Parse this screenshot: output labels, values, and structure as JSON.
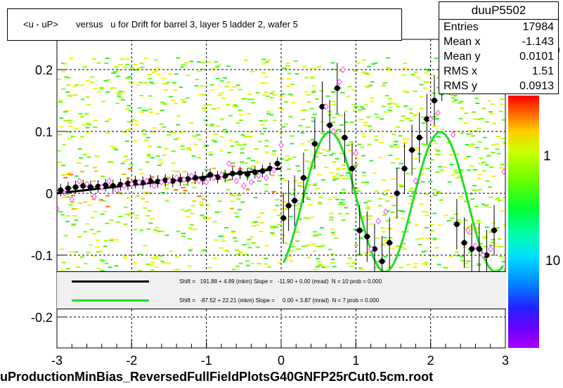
{
  "title": "<u - uP>       versus   u for Drift for barrel 3, layer 5 ladder 2, wafer 5",
  "stats": {
    "name": "duuP5502",
    "rows": [
      {
        "label": "Entries",
        "value": "17984"
      },
      {
        "label": "Mean x",
        "value": "-1.143"
      },
      {
        "label": "Mean y",
        "value": "0.0101"
      },
      {
        "label": "RMS x",
        "value": "1.51"
      },
      {
        "label": "RMS y",
        "value": "0.0913"
      }
    ]
  },
  "legend": [
    {
      "color": "#000000",
      "text": "Shift =   191.88 + 4.89 (mkm) Slope =   -11.90 + 0.00 (mrad)  N = 10 prob = 0.000"
    },
    {
      "color": "#22dd22",
      "text": "Shift =   -87.52 + 22.21 (mkm) Slope =     0.00 + 3.87 (mrad)  N = 7 prob = 0.000"
    }
  ],
  "footer": "uProductionMinBias_ReversedFullFieldPlotsG40GNFP25rCut0.5cm.root",
  "colorbar": {
    "tick_labels": [
      "1",
      "10"
    ],
    "top_label_fragment": "0"
  },
  "chart_data": {
    "type": "scatter",
    "xlim": [
      -3,
      3
    ],
    "ylim": [
      -0.25,
      0.25
    ],
    "x_ticks": [
      -3,
      -2,
      -1,
      0,
      1,
      2,
      3
    ],
    "y_ticks": [
      -0.2,
      -0.1,
      0,
      0.1,
      0.2
    ],
    "x_tick_labels": [
      "-3",
      "-2",
      "-1",
      "0",
      "1",
      "2",
      "3"
    ],
    "y_tick_labels": [
      "-0.2",
      "-0.1",
      "0",
      "0.1",
      "0.2"
    ],
    "grid": true,
    "series": [
      {
        "name": "profile",
        "color": "#000000",
        "marker": "filled-circle",
        "x": [
          -2.95,
          -2.85,
          -2.75,
          -2.65,
          -2.55,
          -2.45,
          -2.35,
          -2.25,
          -2.15,
          -2.05,
          -1.95,
          -1.85,
          -1.75,
          -1.65,
          -1.55,
          -1.45,
          -1.35,
          -1.25,
          -1.15,
          -1.05,
          -0.95,
          -0.85,
          -0.75,
          -0.65,
          -0.55,
          -0.45,
          -0.35,
          -0.25,
          -0.15,
          -0.05,
          0.03,
          0.1,
          0.18,
          0.3,
          0.45,
          0.55,
          0.65,
          0.75,
          0.85,
          0.95,
          1.05,
          1.15,
          1.25,
          1.35,
          1.45,
          1.55,
          1.65,
          1.75,
          1.85,
          1.95,
          2.05,
          2.15,
          2.25,
          2.35,
          2.45,
          2.55,
          2.65,
          2.75,
          2.85
        ],
        "y": [
          0.005,
          0.008,
          0.01,
          0.012,
          0.01,
          0.011,
          0.013,
          0.012,
          0.014,
          0.016,
          0.018,
          0.017,
          0.02,
          0.019,
          0.021,
          0.02,
          0.022,
          0.023,
          0.025,
          0.024,
          0.03,
          0.026,
          0.028,
          0.032,
          0.033,
          0.031,
          0.034,
          0.036,
          0.04,
          0.048,
          -0.04,
          -0.02,
          -0.012,
          0.025,
          0.08,
          0.14,
          0.11,
          0.17,
          0.09,
          0.04,
          -0.06,
          -0.07,
          -0.09,
          -0.11,
          -0.08,
          0.0,
          0.04,
          0.07,
          0.09,
          0.12,
          0.15,
          0.19,
          0.2,
          -0.05,
          -0.08,
          -0.09,
          -0.09,
          -0.1,
          -0.06
        ]
      },
      {
        "name": "mean",
        "color": "#ff44ff",
        "marker": "open-diamond",
        "x": [
          -3.0,
          -2.9,
          -2.8,
          -2.7,
          -2.6,
          -2.5,
          -2.4,
          -2.3,
          -2.2,
          -2.1,
          -2.0,
          -1.9,
          -1.8,
          -1.7,
          -1.6,
          -1.5,
          -1.4,
          -1.3,
          -1.2,
          -1.1,
          -1.0,
          -0.9,
          -0.8,
          -0.7,
          -0.6,
          -0.5,
          -0.4,
          -0.3,
          -0.2,
          -0.1,
          0.0,
          0.6,
          0.7,
          0.78,
          0.83,
          1.0,
          1.2,
          1.3,
          1.4,
          1.8,
          2.0,
          2.1,
          2.3,
          2.5,
          2.6,
          2.7,
          2.8,
          2.98
        ],
        "y": [
          -0.025,
          0.0,
          -0.01,
          0.02,
          0.015,
          -0.005,
          0.01,
          0.02,
          0.005,
          0.012,
          0.015,
          0.018,
          0.02,
          0.012,
          0.018,
          0.02,
          0.025,
          0.022,
          0.028,
          0.02,
          0.018,
          0.025,
          0.03,
          0.048,
          0.02,
          0.012,
          0.018,
          0.028,
          0.025,
          0.038,
          0.078,
          0.14,
          0.1,
          0.18,
          0.2,
          0.065,
          -0.09,
          -0.045,
          -0.03,
          0.02,
          0.12,
          0.13,
          0.095,
          -0.06,
          -0.085,
          -0.1,
          -0.09,
          0.035
        ]
      }
    ],
    "fits": [
      {
        "name": "fit-left",
        "color": "#000000",
        "kind": "line",
        "x": [
          -3.0,
          0.0
        ],
        "y": [
          0.0,
          0.04
        ]
      },
      {
        "name": "fit-right",
        "color": "#22dd22",
        "kind": "curve"
      }
    ]
  }
}
